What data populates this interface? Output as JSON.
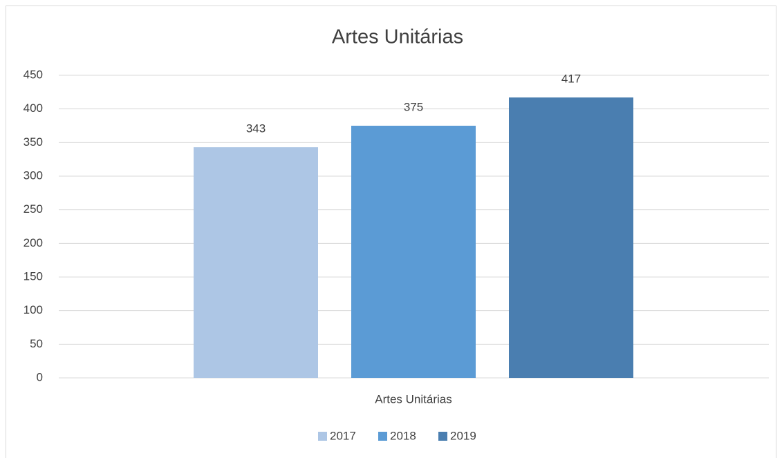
{
  "chart_data": {
    "type": "bar",
    "title": "Artes Unitárias",
    "categories": [
      "Artes Unitárias"
    ],
    "series": [
      {
        "name": "2017",
        "color": "#adc6e5",
        "values": [
          343
        ]
      },
      {
        "name": "2018",
        "color": "#5b9bd5",
        "values": [
          375
        ]
      },
      {
        "name": "2019",
        "color": "#4a7eb0",
        "values": [
          417
        ]
      }
    ],
    "ylim": [
      0,
      450
    ],
    "yticks": [
      0,
      50,
      100,
      150,
      200,
      250,
      300,
      350,
      400,
      450
    ],
    "grid": true,
    "legend": "bottom",
    "data_labels": true
  }
}
